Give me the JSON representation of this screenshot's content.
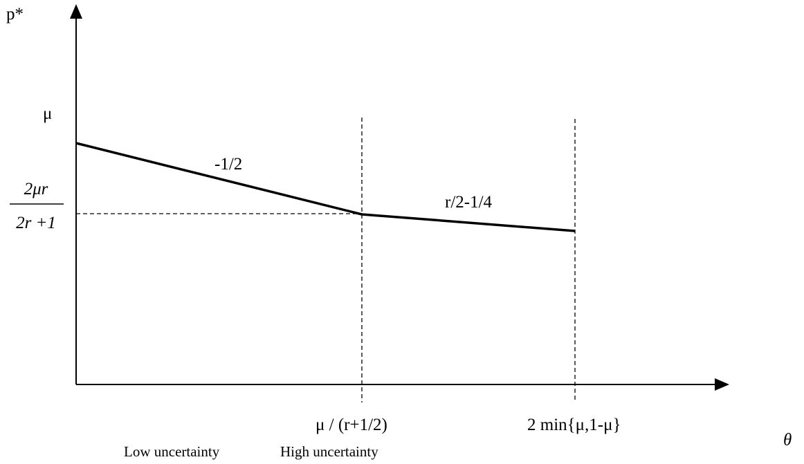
{
  "axes": {
    "y_label": "p*",
    "x_label": "θ"
  },
  "y_ticks": {
    "mu": "μ",
    "frac_numerator": "2μr",
    "frac_denominator": "2r +1"
  },
  "x_ticks": {
    "kink": "μ / (r+1/2)",
    "end": "2 min{μ,1-μ}"
  },
  "slopes": {
    "first": "-1/2",
    "second": "r/2-1/4"
  },
  "regions": {
    "low": "Low uncertainty",
    "high": "High uncertainty"
  },
  "colors": {
    "ink": "#000000",
    "background": "#ffffff"
  }
}
